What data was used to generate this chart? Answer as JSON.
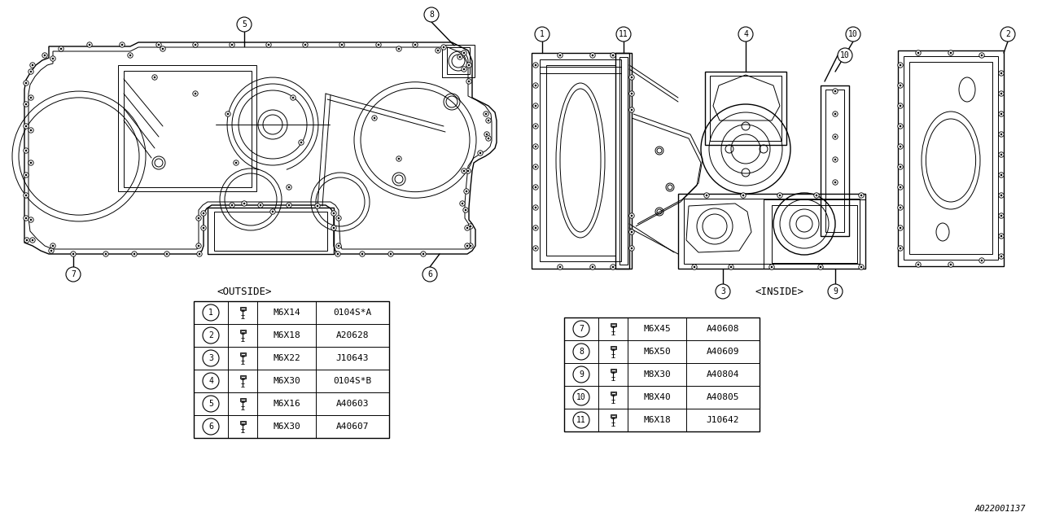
{
  "bg_color": "#ffffff",
  "line_color": "#000000",
  "outside_label": "<OUTSIDE>",
  "inside_label": "<INSIDE>",
  "part_number": "A022001137",
  "left_table_rows": [
    [
      "1",
      "M6X14",
      "0104S*A"
    ],
    [
      "2",
      "M6X18",
      "A20628"
    ],
    [
      "3",
      "M6X22",
      "J10643"
    ],
    [
      "4",
      "M6X30",
      "0104S*B"
    ],
    [
      "5",
      "M6X16",
      "A40603"
    ],
    [
      "6",
      "M6X30",
      "A40607"
    ]
  ],
  "right_table_rows": [
    [
      "7",
      "M6X45",
      "A40608"
    ],
    [
      "8",
      "M6X50",
      "A40609"
    ],
    [
      "9",
      "M8X30",
      "A40804"
    ],
    [
      "10",
      "M8X40",
      "A40805"
    ],
    [
      "11",
      "M6X18",
      "J10642"
    ]
  ]
}
